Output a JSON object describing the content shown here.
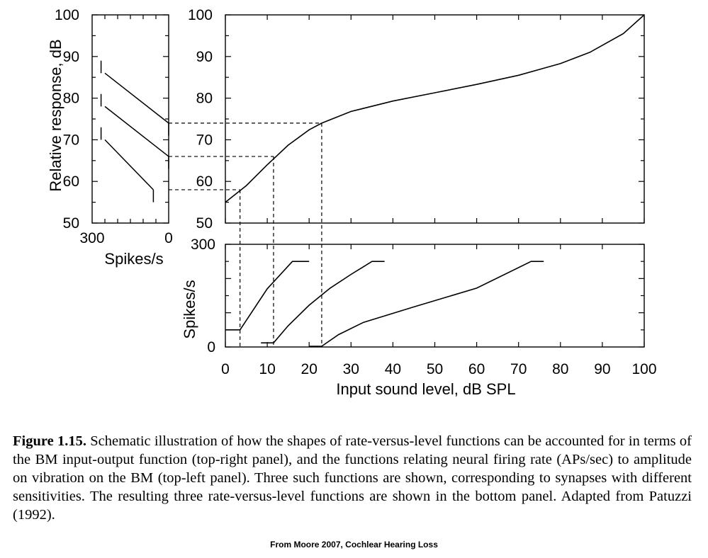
{
  "chart_data": [
    {
      "panel": "top-right",
      "type": "line",
      "xlim": [
        0,
        100
      ],
      "ylim": [
        50,
        100
      ],
      "yticks": [
        50,
        60,
        70,
        80,
        90,
        100
      ],
      "xticks": [
        0,
        10,
        20,
        30,
        40,
        50,
        60,
        70,
        80,
        90,
        100
      ],
      "xtick_labels_shown": false,
      "grid": false,
      "series": [
        {
          "x": [
            0,
            5,
            10,
            15,
            20,
            23,
            30,
            40,
            50,
            60,
            70,
            80,
            87,
            95,
            100
          ],
          "y": [
            55,
            59,
            64,
            68.7,
            72.4,
            74,
            76.8,
            79.3,
            81.3,
            83.3,
            85.5,
            88.3,
            91,
            95.5,
            100
          ]
        }
      ],
      "reference_lines": [
        {
          "level": 3.5,
          "response": 58
        },
        {
          "level": 11.5,
          "response": 66
        },
        {
          "level": 23,
          "response": 74
        }
      ]
    },
    {
      "panel": "top-left",
      "type": "line",
      "xlabel": "Spikes/s",
      "ylabel": "Relative response, dB",
      "xlim": [
        300,
        0
      ],
      "ylim": [
        50,
        100
      ],
      "xticks": [
        300,
        0
      ],
      "yticks": [
        50,
        60,
        70,
        80,
        90,
        100
      ],
      "grid": false,
      "series": [
        {
          "x": [
            0,
            250
          ],
          "y": [
            74,
            86
          ],
          "range_marks": [
            {
              "x": 0,
              "y": [
                71,
                74
              ]
            },
            {
              "x": 265,
              "y": [
                86,
                89
              ]
            }
          ]
        },
        {
          "x": [
            0,
            250
          ],
          "y": [
            66,
            78
          ],
          "range_marks": [
            {
              "x": 0,
              "y": [
                63,
                66
              ]
            },
            {
              "x": 265,
              "y": [
                78,
                81
              ]
            }
          ]
        },
        {
          "x": [
            60,
            250
          ],
          "y": [
            58,
            70
          ],
          "range_marks": [
            {
              "x": 60,
              "y": [
                55,
                58
              ]
            },
            {
              "x": 265,
              "y": [
                70,
                73
              ]
            }
          ]
        }
      ]
    },
    {
      "panel": "bottom",
      "type": "line",
      "xlabel": "Input sound level, dB SPL",
      "ylabel": "Spikes/s",
      "xlim": [
        0,
        100
      ],
      "ylim": [
        0,
        300
      ],
      "xticks": [
        0,
        10,
        20,
        30,
        40,
        50,
        60,
        70,
        80,
        90,
        100
      ],
      "yticks": [
        0,
        300
      ],
      "grid": false,
      "series": [
        {
          "x": [
            0,
            3.5,
            10,
            16,
            20
          ],
          "y": [
            50,
            50,
            170,
            250,
            250
          ]
        },
        {
          "x": [
            8.5,
            11.5,
            15,
            20,
            25,
            30,
            35,
            38
          ],
          "y": [
            12,
            12,
            62,
            122,
            172,
            212,
            250,
            250
          ]
        },
        {
          "x": [
            20,
            23,
            27,
            33,
            45,
            60,
            73,
            76
          ],
          "y": [
            2,
            2,
            36,
            72,
            117,
            172,
            250,
            250
          ]
        }
      ]
    }
  ],
  "caption": {
    "label": "Figure 1.15.",
    "text": " Schematic illustration of how the shapes of rate-versus-level functions can be accounted for in terms of the BM input-output function (top-right panel), and the functions relating neural firing rate (APs/sec) to amplitude on vibration on the BM (top-left panel). Three such functions are shown, corresponding to synapses with different sensitivities. The resulting three rate-versus-level functions are shown in the bottom panel. Adapted from Patuzzi (1992)."
  },
  "credit": "From Moore 2007, Cochlear Hearing Loss"
}
